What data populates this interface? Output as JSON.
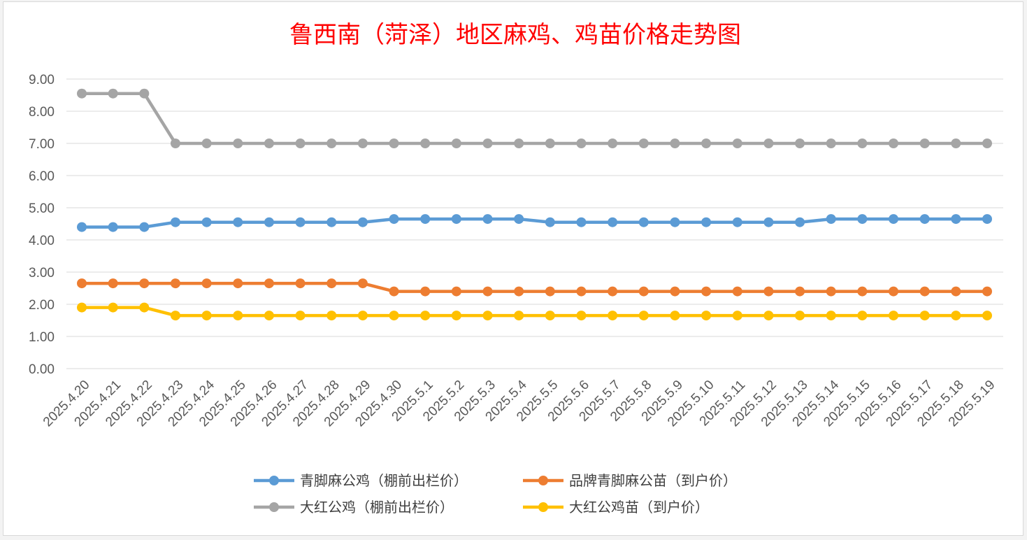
{
  "chart_data": {
    "type": "line",
    "title": "鲁西南（菏泽）地区麻鸡、鸡苗价格走势图",
    "ylim": [
      0,
      9
    ],
    "yticks": [
      "0.00",
      "1.00",
      "2.00",
      "3.00",
      "4.00",
      "5.00",
      "6.00",
      "7.00",
      "8.00",
      "9.00"
    ],
    "grid": true,
    "legend_position": "bottom",
    "categories": [
      "2025.4.20",
      "2025.4.21",
      "2025.4.22",
      "2025.4.23",
      "2025.4.24",
      "2025.4.25",
      "2025.4.26",
      "2025.4.27",
      "2025.4.28",
      "2025.4.29",
      "2025.4.30",
      "2025.5.1",
      "2025.5.2",
      "2025.5.3",
      "2025.5.4",
      "2025.5.5",
      "2025.5.6",
      "2025.5.7",
      "2025.5.8",
      "2025.5.9",
      "2025.5.10",
      "2025.5.11",
      "2025.5.12",
      "2025.5.13",
      "2025.5.14",
      "2025.5.15",
      "2025.5.16",
      "2025.5.17",
      "2025.5.18",
      "2025.5.19"
    ],
    "series": [
      {
        "name": "青脚麻公鸡（棚前出栏价）",
        "color": "#5b9bd5",
        "values": [
          4.4,
          4.4,
          4.4,
          4.55,
          4.55,
          4.55,
          4.55,
          4.55,
          4.55,
          4.55,
          4.65,
          4.65,
          4.65,
          4.65,
          4.65,
          4.55,
          4.55,
          4.55,
          4.55,
          4.55,
          4.55,
          4.55,
          4.55,
          4.55,
          4.65,
          4.65,
          4.65,
          4.65,
          4.65,
          4.65
        ]
      },
      {
        "name": "品牌青脚麻公苗（到户价）",
        "color": "#ed7d31",
        "values": [
          2.65,
          2.65,
          2.65,
          2.65,
          2.65,
          2.65,
          2.65,
          2.65,
          2.65,
          2.65,
          2.4,
          2.4,
          2.4,
          2.4,
          2.4,
          2.4,
          2.4,
          2.4,
          2.4,
          2.4,
          2.4,
          2.4,
          2.4,
          2.4,
          2.4,
          2.4,
          2.4,
          2.4,
          2.4,
          2.4
        ]
      },
      {
        "name": "大红公鸡（棚前出栏价）",
        "color": "#a5a5a5",
        "values": [
          8.55,
          8.55,
          8.55,
          7.0,
          7.0,
          7.0,
          7.0,
          7.0,
          7.0,
          7.0,
          7.0,
          7.0,
          7.0,
          7.0,
          7.0,
          7.0,
          7.0,
          7.0,
          7.0,
          7.0,
          7.0,
          7.0,
          7.0,
          7.0,
          7.0,
          7.0,
          7.0,
          7.0,
          7.0,
          7.0
        ]
      },
      {
        "name": "大红公鸡苗（到户价）",
        "color": "#ffc000",
        "values": [
          1.9,
          1.9,
          1.9,
          1.65,
          1.65,
          1.65,
          1.65,
          1.65,
          1.65,
          1.65,
          1.65,
          1.65,
          1.65,
          1.65,
          1.65,
          1.65,
          1.65,
          1.65,
          1.65,
          1.65,
          1.65,
          1.65,
          1.65,
          1.65,
          1.65,
          1.65,
          1.65,
          1.65,
          1.65,
          1.65
        ]
      }
    ]
  }
}
